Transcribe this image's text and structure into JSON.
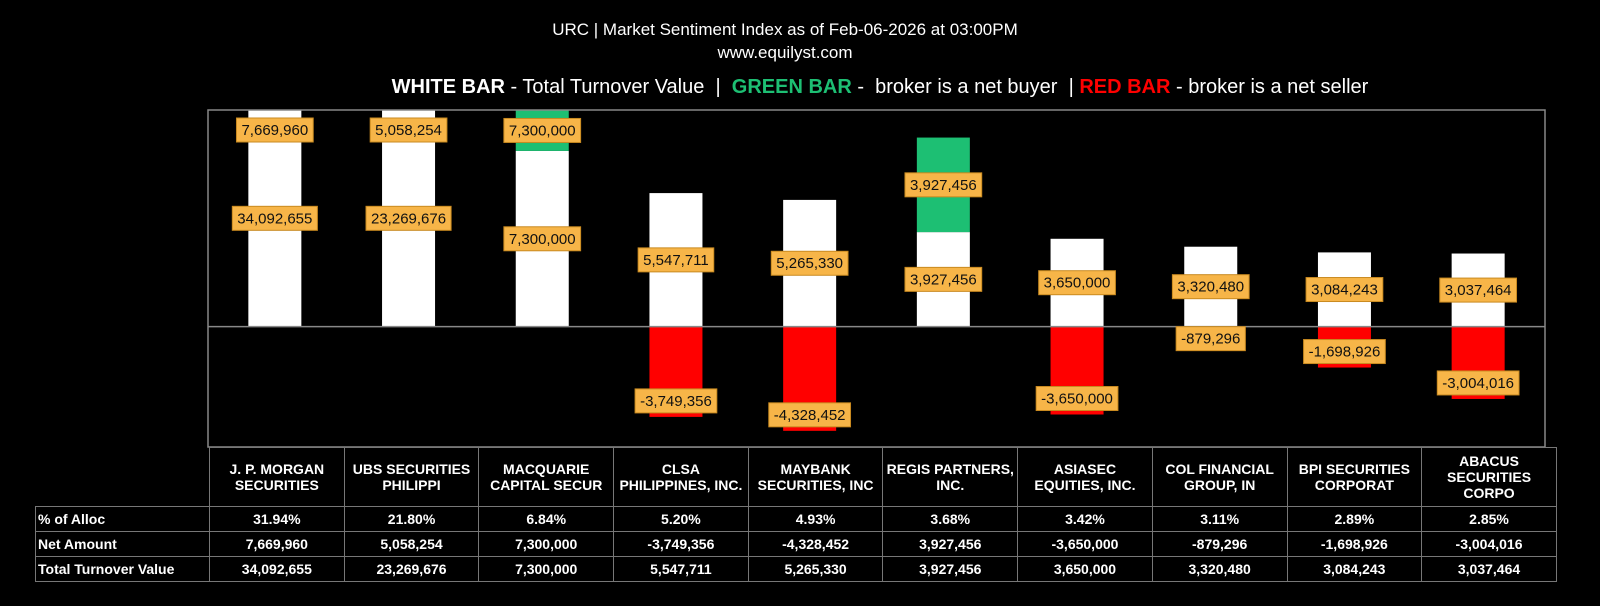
{
  "chart_data": {
    "type": "bar",
    "title": "URC | Market Sentiment Index as of Feb-06-2026 at 03:00PM",
    "subtitle": "www.equilyst.com",
    "legend": [
      {
        "text": "WHITE BAR",
        "color": "#ffffff"
      },
      {
        "text": " - Total Turnover Value  |  "
      },
      {
        "text": "GREEN BAR",
        "color": "#1dbf73"
      },
      {
        "text": " -  broker is a net buyer  | "
      },
      {
        "text": "RED BAR",
        "color": "#ff0000"
      },
      {
        "text": " - broker is a net seller"
      }
    ],
    "categories": [
      "J. P. MORGAN SECURITIES",
      "UBS SECURITIES PHILIPPI",
      "MACQUARIE CAPITAL SECUR",
      "CLSA PHILIPPINES, INC.",
      "MAYBANK SECURITIES, INC",
      "REGIS PARTNERS, INC.",
      "ASIASEC EQUITIES, INC.",
      "COL FINANCIAL GROUP, IN",
      "BPI SECURITIES CORPORAT",
      "ABACUS SECURITIES CORPO"
    ],
    "series": [
      {
        "name": "% of Alloc",
        "values": [
          31.94,
          21.8,
          6.84,
          5.2,
          4.93,
          3.68,
          3.42,
          3.11,
          2.89,
          2.85
        ],
        "value_labels": [
          "31.94%",
          "21.80%",
          "6.84%",
          "5.20%",
          "4.93%",
          "3.68%",
          "3.42%",
          "3.11%",
          "2.89%",
          "2.85%"
        ]
      },
      {
        "name": "Net Amount",
        "color": "#1dbf73",
        "negative_color": "#ff0000",
        "values": [
          7669960,
          5058254,
          7300000,
          -3749356,
          -4328452,
          3927456,
          -3650000,
          -879296,
          -1698926,
          -3004016
        ],
        "value_labels": [
          "7,669,960",
          "5,058,254",
          "7,300,000",
          "-3,749,356",
          "-4,328,452",
          "3,927,456",
          "-3,650,000",
          "-879,296",
          "-1,698,926",
          "-3,004,016"
        ]
      },
      {
        "name": "Total Turnover Value",
        "color": "#ffffff",
        "values": [
          34092655,
          23269676,
          7300000,
          5547711,
          5265330,
          3927456,
          3650000,
          3320480,
          3084243,
          3037464
        ],
        "value_labels": [
          "34,092,655",
          "23,269,676",
          "7,300,000",
          "5,547,711",
          "5,265,330",
          "3,927,456",
          "3,650,000",
          "3,320,480",
          "3,084,243",
          "3,037,464"
        ]
      }
    ],
    "ylim": [
      -5000000,
      9000000
    ]
  }
}
